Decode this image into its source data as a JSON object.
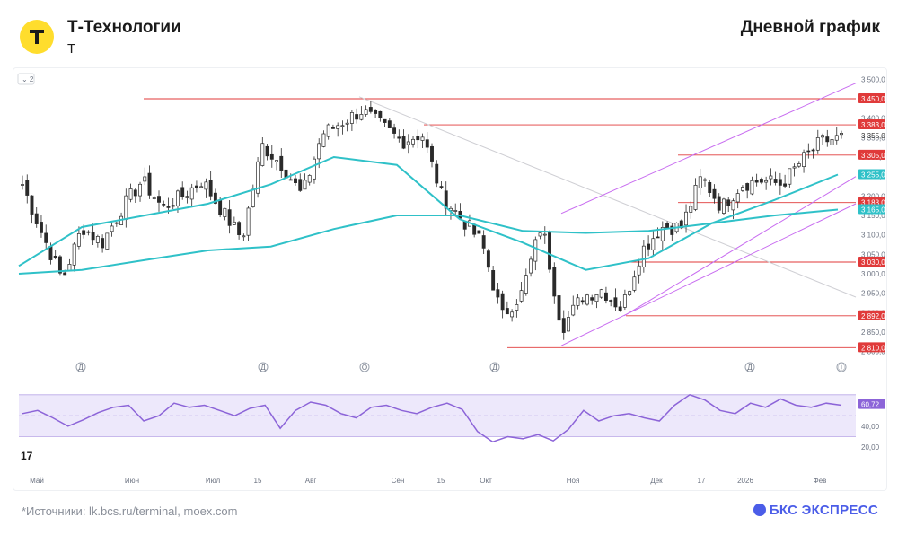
{
  "header": {
    "company": "Т-Технологии",
    "symbol": "T",
    "title": "Дневной график"
  },
  "footer": {
    "sources": "*Источники: lk.bcs.ru/terminal, moex.com",
    "brand": "БКС ЭКСПРЕСС"
  },
  "toolbar": {
    "indicator_toggle": "2"
  },
  "colors": {
    "up": "#2a2a2a",
    "down": "#2a2a2a",
    "ma": "#2fc1c8",
    "level": "#e03a3a",
    "channel": "#c86cf0",
    "trend": "#cfcfd4",
    "rsi": "#8c64d8",
    "rsi_band": "#ede8fb",
    "brand": "#4b5de8"
  },
  "chart_data": [
    {
      "type": "candlestick",
      "title": "",
      "x_ticks": [
        "Май",
        "Июн",
        "Июл",
        "15",
        "Авг",
        "Сен",
        "15",
        "Окт",
        "Ноя",
        "Дек",
        "17",
        "2026",
        "Фев"
      ],
      "y_ticks": [
        "3 500,0",
        "3 450,0",
        "3 400,0",
        "3 350,0",
        "3 300,0",
        "3 250,0",
        "3 200,0",
        "3 150,0",
        "3 100,0",
        "3 050,0",
        "3 000,0",
        "2 950,0",
        "2 900,0",
        "2 850,0",
        "2 800,0"
      ],
      "ylim": [
        2790,
        3510
      ],
      "close_path": [
        [
          "Май",
          3230
        ],
        [
          "",
          3100
        ],
        [
          "",
          2985
        ],
        [
          "",
          3120
        ],
        [
          "",
          3080
        ],
        [
          "Июн",
          3170
        ],
        [
          "",
          3240
        ],
        [
          "",
          3170
        ],
        [
          "",
          3200
        ],
        [
          "",
          3240
        ],
        [
          "Июл",
          3160
        ],
        [
          "",
          3090
        ],
        [
          "15",
          3330
        ],
        [
          "",
          3280
        ],
        [
          "",
          3200
        ],
        [
          "Авг",
          3360
        ],
        [
          "",
          3390
        ],
        [
          "",
          3420
        ],
        [
          "",
          3380
        ],
        [
          "Сен",
          3340
        ],
        [
          "",
          3360
        ],
        [
          "15",
          3200
        ],
        [
          "",
          3140
        ],
        [
          "",
          3080
        ],
        [
          "Окт",
          2890
        ],
        [
          "",
          2950
        ],
        [
          "",
          3130
        ],
        [
          "",
          2860
        ],
        [
          "",
          2940
        ],
        [
          "Ноя",
          2960
        ],
        [
          "",
          2910
        ],
        [
          "",
          3060
        ],
        [
          "",
          3120
        ],
        [
          "Дек",
          3120
        ],
        [
          "",
          3250
        ],
        [
          "17",
          3170
        ],
        [
          "",
          3230
        ],
        [
          "2026",
          3240
        ],
        [
          "",
          3230
        ],
        [
          "",
          3290
        ],
        [
          "",
          3340
        ],
        [
          "Фев",
          3350
        ]
      ],
      "moving_averages": [
        {
          "label": "3 255,0",
          "path": [
            3020,
            3120,
            3150,
            3180,
            3230,
            3300,
            3280,
            3140,
            3080,
            3010,
            3040,
            3130,
            3190,
            3255
          ]
        },
        {
          "label": "3 165,0",
          "path": [
            3000,
            3010,
            3035,
            3060,
            3070,
            3115,
            3150,
            3150,
            3110,
            3105,
            3110,
            3130,
            3150,
            3165
          ]
        }
      ],
      "price_labels": [
        "3 450,0",
        "3 383,0",
        "3 355,0",
        "3 305,0",
        "3 255,0",
        "3 183,0",
        "3 165,0",
        "3 030,0",
        "2 892,0",
        "2 810,0"
      ],
      "horizontal_levels": [
        3450,
        3383,
        3305,
        3183,
        3030,
        2892,
        2810
      ],
      "event_markers": [
        "Д",
        "Д",
        "О",
        "Д",
        "Д",
        "Ⓘ"
      ]
    },
    {
      "type": "line",
      "title": "",
      "ylim": [
        15,
        75
      ],
      "y_ticks": [
        "60,00",
        "40,00",
        "20,00"
      ],
      "last_value": "60,72",
      "values": [
        52,
        55,
        48,
        40,
        46,
        53,
        58,
        60,
        45,
        50,
        62,
        58,
        60,
        55,
        50,
        57,
        60,
        38,
        55,
        63,
        60,
        52,
        48,
        58,
        60,
        55,
        52,
        58,
        62,
        56,
        35,
        25,
        30,
        28,
        32,
        26,
        37,
        55,
        45,
        50,
        52,
        48,
        45,
        60,
        70,
        65,
        55,
        52,
        62,
        58,
        66,
        60,
        58,
        62,
        60
      ]
    }
  ]
}
